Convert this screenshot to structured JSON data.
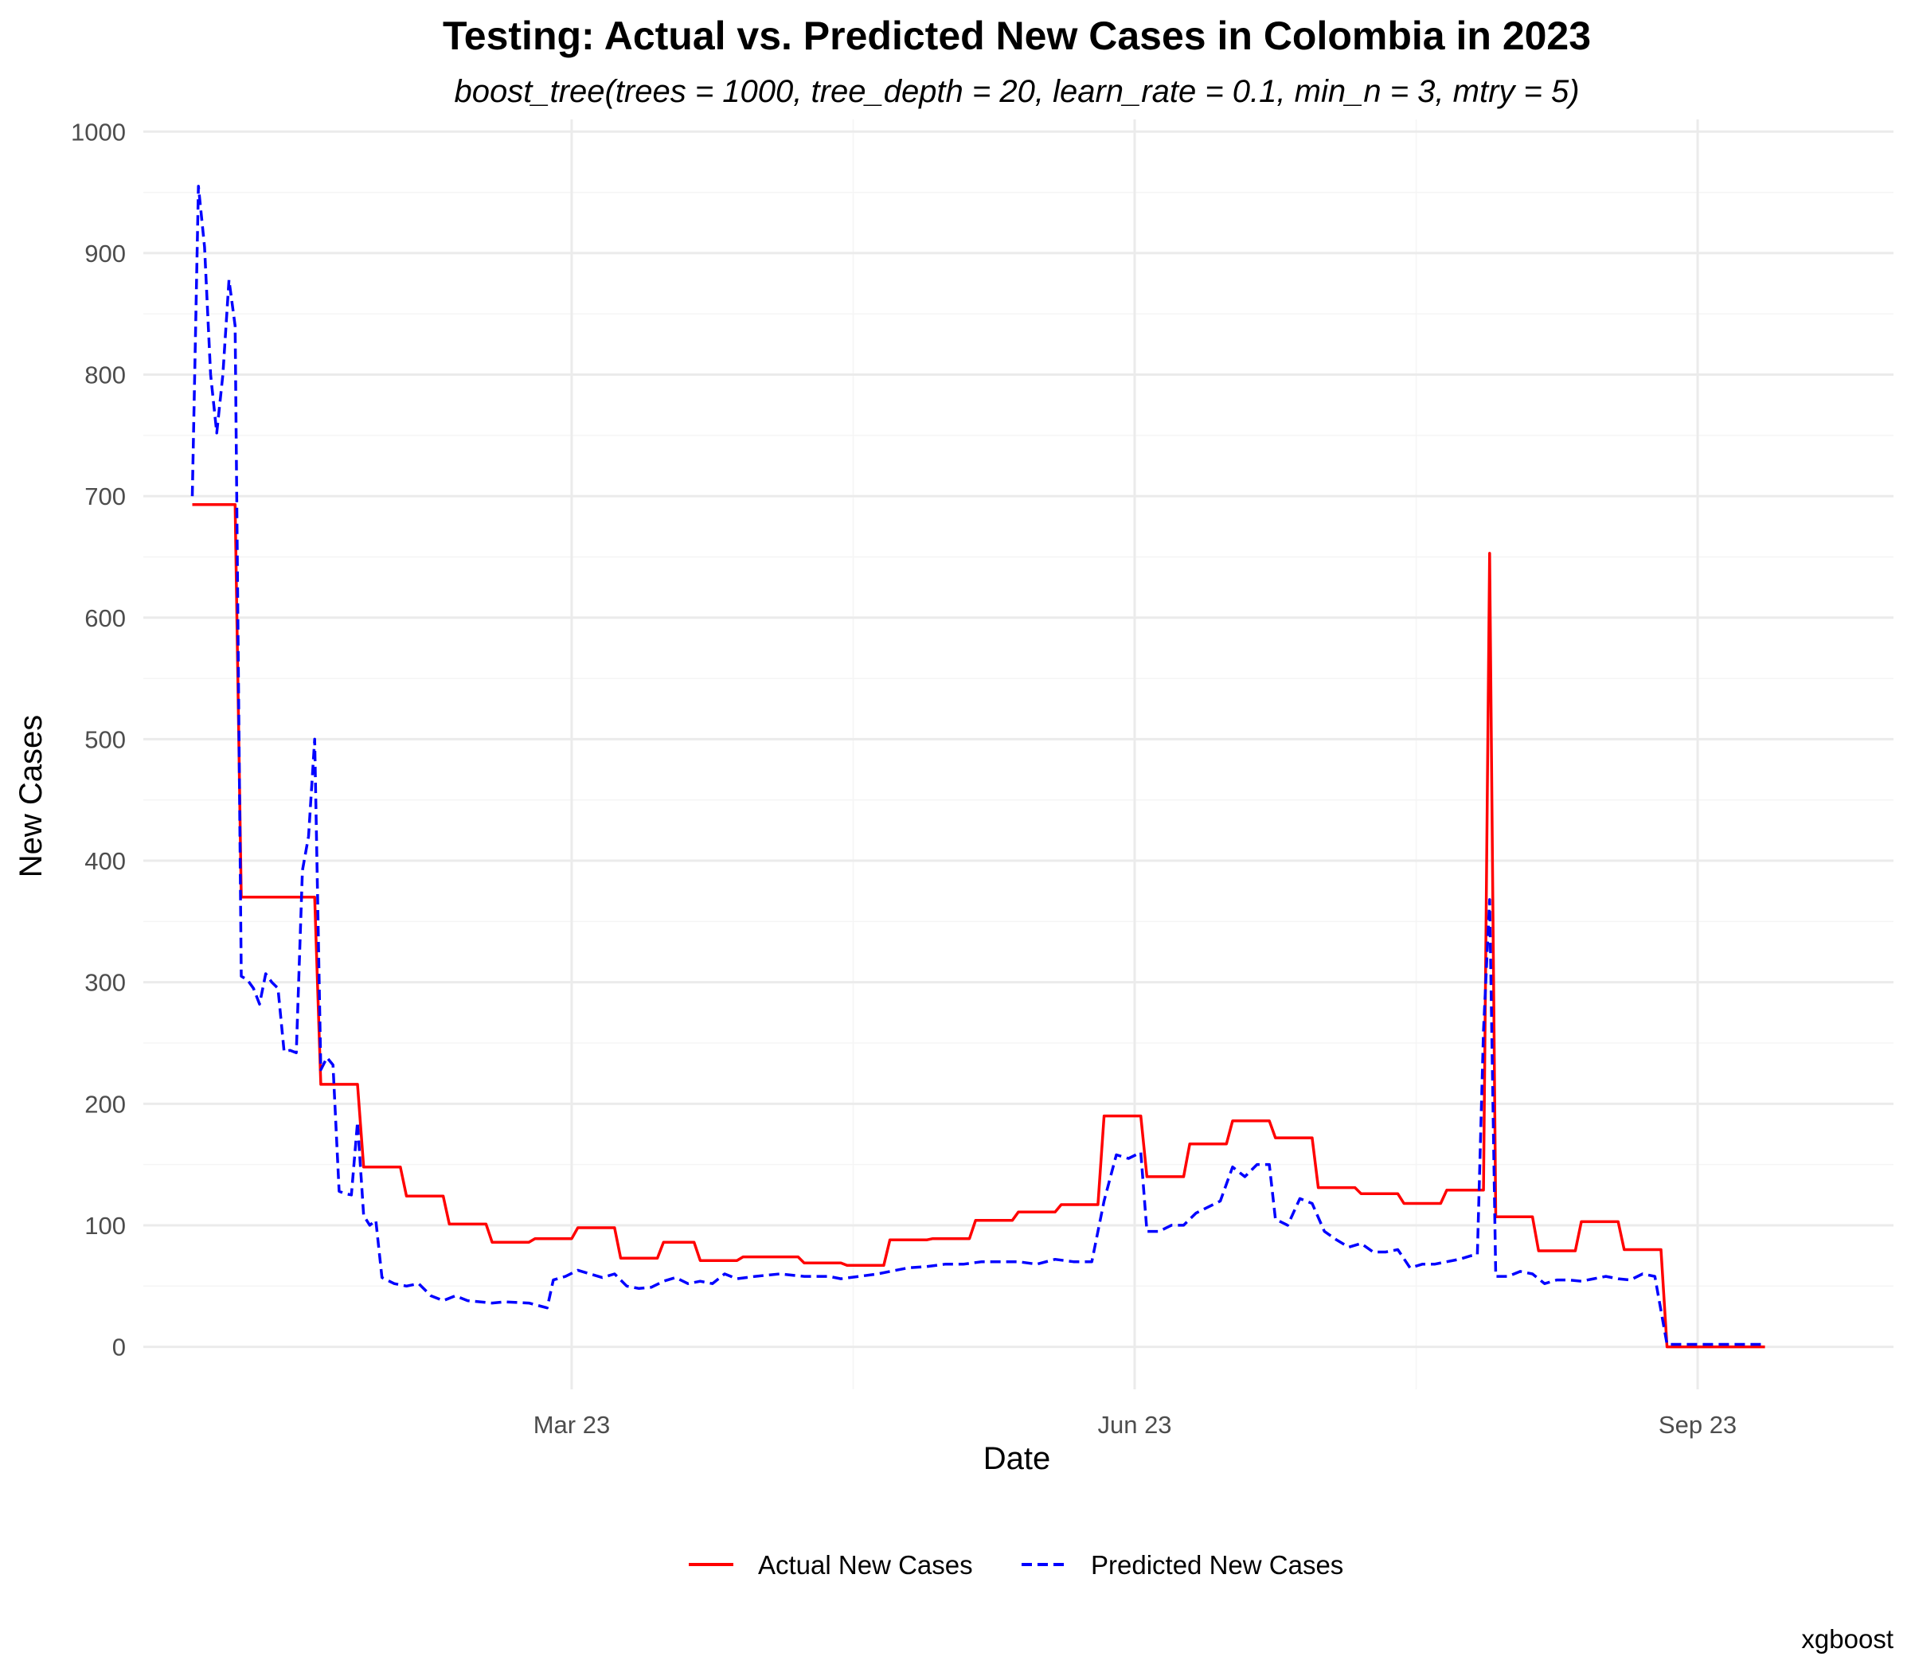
{
  "chart_data": {
    "type": "line",
    "title": "Testing: Actual vs. Predicted New Cases in Colombia in 2023",
    "subtitle": "boost_tree(trees = 1000, tree_depth = 20, learn_rate = 0.1, min_n = 3, mtry = 5)",
    "xlabel": "Date",
    "ylabel": "New Cases",
    "caption": "xgboost",
    "x_range": [
      "2022-12-21",
      "2023-10-03"
    ],
    "ylim": [
      -35,
      1010
    ],
    "y_ticks": [
      0,
      100,
      200,
      300,
      400,
      500,
      600,
      700,
      800,
      900,
      1000
    ],
    "x_ticks": [
      {
        "date": "2023-03-01",
        "label": "Mar 23"
      },
      {
        "date": "2023-06-01",
        "label": "Jun 23"
      },
      {
        "date": "2023-09-01",
        "label": "Sep 23"
      }
    ],
    "grid": true,
    "legend_position": "bottom",
    "series": [
      {
        "name": "Actual New Cases",
        "color": "#ff0000",
        "line_style": "solid",
        "points": [
          [
            "2022-12-29",
            693
          ],
          [
            "2023-01-05",
            693
          ],
          [
            "2023-01-06",
            370
          ],
          [
            "2023-01-18",
            370
          ],
          [
            "2023-01-19",
            216
          ],
          [
            "2023-01-25",
            216
          ],
          [
            "2023-01-26",
            148
          ],
          [
            "2023-02-01",
            148
          ],
          [
            "2023-02-02",
            124
          ],
          [
            "2023-02-08",
            124
          ],
          [
            "2023-02-09",
            101
          ],
          [
            "2023-02-15",
            101
          ],
          [
            "2023-02-16",
            86
          ],
          [
            "2023-02-22",
            86
          ],
          [
            "2023-02-23",
            89
          ],
          [
            "2023-03-01",
            89
          ],
          [
            "2023-03-02",
            98
          ],
          [
            "2023-03-08",
            98
          ],
          [
            "2023-03-09",
            73
          ],
          [
            "2023-03-15",
            73
          ],
          [
            "2023-03-16",
            86
          ],
          [
            "2023-03-21",
            86
          ],
          [
            "2023-03-22",
            71
          ],
          [
            "2023-03-28",
            71
          ],
          [
            "2023-03-29",
            74
          ],
          [
            "2023-04-07",
            74
          ],
          [
            "2023-04-08",
            69
          ],
          [
            "2023-04-14",
            69
          ],
          [
            "2023-04-15",
            67
          ],
          [
            "2023-04-21",
            67
          ],
          [
            "2023-04-22",
            88
          ],
          [
            "2023-04-28",
            88
          ],
          [
            "2023-04-29",
            89
          ],
          [
            "2023-05-05",
            89
          ],
          [
            "2023-05-06",
            104
          ],
          [
            "2023-05-12",
            104
          ],
          [
            "2023-05-13",
            111
          ],
          [
            "2023-05-19",
            111
          ],
          [
            "2023-05-20",
            117
          ],
          [
            "2023-05-26",
            117
          ],
          [
            "2023-05-27",
            190
          ],
          [
            "2023-06-02",
            190
          ],
          [
            "2023-06-03",
            140
          ],
          [
            "2023-06-09",
            140
          ],
          [
            "2023-06-10",
            167
          ],
          [
            "2023-06-16",
            167
          ],
          [
            "2023-06-17",
            186
          ],
          [
            "2023-06-23",
            186
          ],
          [
            "2023-06-24",
            172
          ],
          [
            "2023-06-30",
            172
          ],
          [
            "2023-07-01",
            131
          ],
          [
            "2023-07-07",
            131
          ],
          [
            "2023-07-08",
            126
          ],
          [
            "2023-07-14",
            126
          ],
          [
            "2023-07-15",
            118
          ],
          [
            "2023-07-21",
            118
          ],
          [
            "2023-07-22",
            129
          ],
          [
            "2023-07-28",
            129
          ],
          [
            "2023-07-29",
            653
          ],
          [
            "2023-07-30",
            107
          ],
          [
            "2023-08-05",
            107
          ],
          [
            "2023-08-06",
            79
          ],
          [
            "2023-08-12",
            79
          ],
          [
            "2023-08-13",
            103
          ],
          [
            "2023-08-19",
            103
          ],
          [
            "2023-08-20",
            80
          ],
          [
            "2023-08-26",
            80
          ],
          [
            "2023-08-27",
            0
          ],
          [
            "2023-09-12",
            0
          ]
        ]
      },
      {
        "name": "Predicted New Cases",
        "color": "#0000ff",
        "line_style": "dashed",
        "points": [
          [
            "2022-12-29",
            700
          ],
          [
            "2022-12-30",
            955
          ],
          [
            "2022-12-31",
            905
          ],
          [
            "2023-01-01",
            800
          ],
          [
            "2023-01-02",
            752
          ],
          [
            "2023-01-03",
            800
          ],
          [
            "2023-01-04",
            878
          ],
          [
            "2023-01-05",
            840
          ],
          [
            "2023-01-06",
            305
          ],
          [
            "2023-01-07",
            302
          ],
          [
            "2023-01-08",
            295
          ],
          [
            "2023-01-09",
            282
          ],
          [
            "2023-01-10",
            307
          ],
          [
            "2023-01-11",
            300
          ],
          [
            "2023-01-12",
            295
          ],
          [
            "2023-01-13",
            243
          ],
          [
            "2023-01-14",
            244
          ],
          [
            "2023-01-15",
            242
          ],
          [
            "2023-01-16",
            392
          ],
          [
            "2023-01-17",
            420
          ],
          [
            "2023-01-18",
            500
          ],
          [
            "2023-01-19",
            228
          ],
          [
            "2023-01-20",
            238
          ],
          [
            "2023-01-21",
            232
          ],
          [
            "2023-01-22",
            128
          ],
          [
            "2023-01-23",
            126
          ],
          [
            "2023-01-24",
            125
          ],
          [
            "2023-01-25",
            185
          ],
          [
            "2023-01-26",
            108
          ],
          [
            "2023-01-27",
            100
          ],
          [
            "2023-01-28",
            104
          ],
          [
            "2023-01-29",
            57
          ],
          [
            "2023-01-31",
            52
          ],
          [
            "2023-02-02",
            50
          ],
          [
            "2023-02-04",
            52
          ],
          [
            "2023-02-06",
            42
          ],
          [
            "2023-02-08",
            38
          ],
          [
            "2023-02-10",
            42
          ],
          [
            "2023-02-12",
            38
          ],
          [
            "2023-02-16",
            36
          ],
          [
            "2023-02-18",
            37
          ],
          [
            "2023-02-22",
            36
          ],
          [
            "2023-02-25",
            32
          ],
          [
            "2023-02-26",
            55
          ],
          [
            "2023-02-28",
            58
          ],
          [
            "2023-03-02",
            63
          ],
          [
            "2023-03-04",
            60
          ],
          [
            "2023-03-06",
            57
          ],
          [
            "2023-03-08",
            60
          ],
          [
            "2023-03-10",
            50
          ],
          [
            "2023-03-12",
            48
          ],
          [
            "2023-03-14",
            49
          ],
          [
            "2023-03-16",
            54
          ],
          [
            "2023-03-18",
            57
          ],
          [
            "2023-03-20",
            52
          ],
          [
            "2023-03-22",
            54
          ],
          [
            "2023-03-24",
            52
          ],
          [
            "2023-03-26",
            60
          ],
          [
            "2023-03-28",
            56
          ],
          [
            "2023-03-31",
            58
          ],
          [
            "2023-04-04",
            60
          ],
          [
            "2023-04-08",
            58
          ],
          [
            "2023-04-12",
            58
          ],
          [
            "2023-04-14",
            56
          ],
          [
            "2023-04-17",
            58
          ],
          [
            "2023-04-20",
            60
          ],
          [
            "2023-04-22",
            62
          ],
          [
            "2023-04-25",
            65
          ],
          [
            "2023-04-28",
            66
          ],
          [
            "2023-05-01",
            68
          ],
          [
            "2023-05-04",
            68
          ],
          [
            "2023-05-07",
            70
          ],
          [
            "2023-05-10",
            70
          ],
          [
            "2023-05-13",
            70
          ],
          [
            "2023-05-16",
            68
          ],
          [
            "2023-05-19",
            72
          ],
          [
            "2023-05-22",
            70
          ],
          [
            "2023-05-25",
            70
          ],
          [
            "2023-05-27",
            120
          ],
          [
            "2023-05-29",
            158
          ],
          [
            "2023-05-31",
            155
          ],
          [
            "2023-06-02",
            160
          ],
          [
            "2023-06-03",
            95
          ],
          [
            "2023-06-05",
            95
          ],
          [
            "2023-06-07",
            100
          ],
          [
            "2023-06-09",
            100
          ],
          [
            "2023-06-11",
            110
          ],
          [
            "2023-06-13",
            115
          ],
          [
            "2023-06-15",
            120
          ],
          [
            "2023-06-17",
            148
          ],
          [
            "2023-06-19",
            140
          ],
          [
            "2023-06-21",
            150
          ],
          [
            "2023-06-23",
            150
          ],
          [
            "2023-06-24",
            105
          ],
          [
            "2023-06-26",
            100
          ],
          [
            "2023-06-28",
            122
          ],
          [
            "2023-06-30",
            118
          ],
          [
            "2023-07-02",
            95
          ],
          [
            "2023-07-04",
            88
          ],
          [
            "2023-07-06",
            82
          ],
          [
            "2023-07-08",
            85
          ],
          [
            "2023-07-10",
            78
          ],
          [
            "2023-07-12",
            78
          ],
          [
            "2023-07-14",
            80
          ],
          [
            "2023-07-16",
            65
          ],
          [
            "2023-07-18",
            68
          ],
          [
            "2023-07-20",
            68
          ],
          [
            "2023-07-22",
            70
          ],
          [
            "2023-07-24",
            72
          ],
          [
            "2023-07-26",
            75
          ],
          [
            "2023-07-27",
            76
          ],
          [
            "2023-07-28",
            260
          ],
          [
            "2023-07-29",
            368
          ],
          [
            "2023-07-30",
            58
          ],
          [
            "2023-08-01",
            58
          ],
          [
            "2023-08-03",
            62
          ],
          [
            "2023-08-05",
            60
          ],
          [
            "2023-08-07",
            52
          ],
          [
            "2023-08-09",
            55
          ],
          [
            "2023-08-11",
            55
          ],
          [
            "2023-08-13",
            54
          ],
          [
            "2023-08-15",
            56
          ],
          [
            "2023-08-17",
            58
          ],
          [
            "2023-08-19",
            56
          ],
          [
            "2023-08-21",
            55
          ],
          [
            "2023-08-23",
            60
          ],
          [
            "2023-08-25",
            58
          ],
          [
            "2023-08-27",
            2
          ],
          [
            "2023-08-31",
            2
          ],
          [
            "2023-09-04",
            2
          ],
          [
            "2023-09-08",
            2
          ],
          [
            "2023-09-12",
            2
          ]
        ]
      }
    ]
  }
}
